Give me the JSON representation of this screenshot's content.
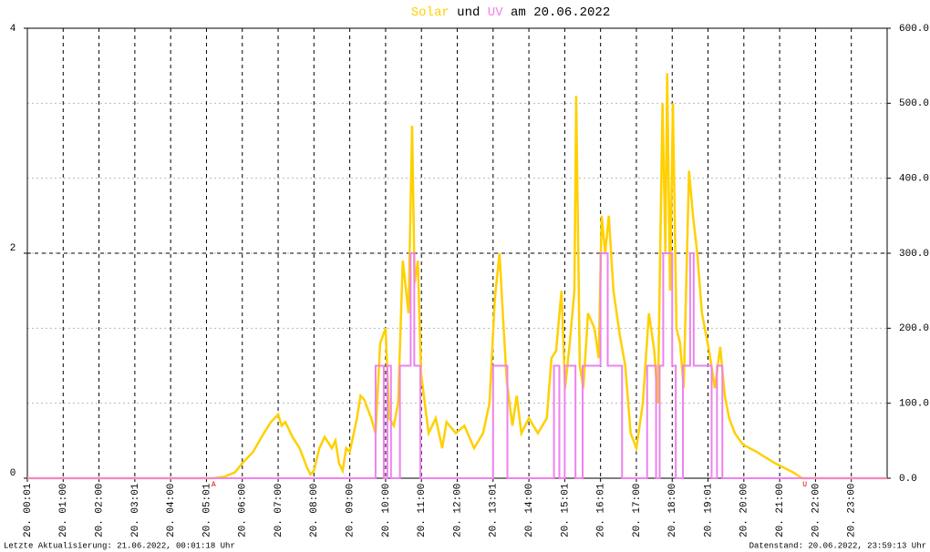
{
  "chart_data": {
    "type": "line",
    "title_join": "und",
    "title_suffix": "am 20.06.2022",
    "footer_left": "Letzte Aktualisierung: 21.06.2022, 00:01:18 Uhr",
    "footer_right": "Datenstand: 20.06.2022, 23:59:13 Uhr",
    "xlim": [
      0,
      24
    ],
    "xticks": [
      {
        "value": 0,
        "label": "20. 00:01"
      },
      {
        "value": 1,
        "label": "20. 01:00"
      },
      {
        "value": 2,
        "label": "20. 02:00"
      },
      {
        "value": 3,
        "label": "20. 03:01"
      },
      {
        "value": 4,
        "label": "20. 04:00"
      },
      {
        "value": 5,
        "label": "20. 05:01"
      },
      {
        "value": 6,
        "label": "20. 06:00"
      },
      {
        "value": 7,
        "label": "20. 07:00"
      },
      {
        "value": 8,
        "label": "20. 08:00"
      },
      {
        "value": 9,
        "label": "20. 09:00"
      },
      {
        "value": 10,
        "label": "20. 10:00"
      },
      {
        "value": 11,
        "label": "20. 11:00"
      },
      {
        "value": 12,
        "label": "20. 12:00"
      },
      {
        "value": 13,
        "label": "20. 13:01"
      },
      {
        "value": 14,
        "label": "20. 14:00"
      },
      {
        "value": 15,
        "label": "20. 15:01"
      },
      {
        "value": 16,
        "label": "20. 16:01"
      },
      {
        "value": 17,
        "label": "20. 17:00"
      },
      {
        "value": 18,
        "label": "20. 18:00"
      },
      {
        "value": 19,
        "label": "20. 19:01"
      },
      {
        "value": 20,
        "label": "20. 20:00"
      },
      {
        "value": 21,
        "label": "20. 21:00"
      },
      {
        "value": 22,
        "label": "20. 22:00"
      },
      {
        "value": 23,
        "label": "20. 23:00"
      }
    ],
    "ylim": [
      0,
      4
    ],
    "yticks": [
      0,
      2,
      4
    ],
    "y2lim": [
      0,
      600
    ],
    "y2ticks": [
      {
        "value": 0,
        "label": "0.0"
      },
      {
        "value": 100,
        "label": "100.0"
      },
      {
        "value": 200,
        "label": "200.0"
      },
      {
        "value": 300,
        "label": "300.0"
      },
      {
        "value": 400,
        "label": "400.0"
      },
      {
        "value": 500,
        "label": "500.0"
      },
      {
        "value": 600,
        "label": "600.0"
      }
    ],
    "grid": true,
    "annotations": [
      {
        "text": "A",
        "x": 5.2
      },
      {
        "text": "U",
        "x": 21.7
      }
    ],
    "series": [
      {
        "name": "Solar",
        "color": "#ffd000",
        "axis": "y2",
        "step": false,
        "x": [
          0,
          5.2,
          5.5,
          5.8,
          6.0,
          6.3,
          6.6,
          6.8,
          7.0,
          7.1,
          7.2,
          7.4,
          7.6,
          7.8,
          7.9,
          8.0,
          8.15,
          8.3,
          8.5,
          8.6,
          8.7,
          8.8,
          8.9,
          9.0,
          9.2,
          9.3,
          9.4,
          9.6,
          9.72,
          9.85,
          10.0,
          10.1,
          10.23,
          10.35,
          10.48,
          10.64,
          10.74,
          10.81,
          10.9,
          10.99,
          11.2,
          11.4,
          11.58,
          11.7,
          11.96,
          12.2,
          12.47,
          12.72,
          12.9,
          13.05,
          13.18,
          13.26,
          13.38,
          13.54,
          13.66,
          13.79,
          14.0,
          14.25,
          14.5,
          14.63,
          14.76,
          14.91,
          15.01,
          15.14,
          15.27,
          15.32,
          15.42,
          15.52,
          15.65,
          15.83,
          15.95,
          16.03,
          16.13,
          16.23,
          16.36,
          16.54,
          16.69,
          16.84,
          17.0,
          17.18,
          17.35,
          17.5,
          17.6,
          17.73,
          17.81,
          17.86,
          17.94,
          18.02,
          18.12,
          18.22,
          18.32,
          18.47,
          18.58,
          18.7,
          18.83,
          19.03,
          19.19,
          19.34,
          19.47,
          19.59,
          19.75,
          19.97,
          20.36,
          20.87,
          21.37,
          21.63,
          24
        ],
        "values": [
          0,
          0,
          2,
          8,
          20,
          35,
          60,
          75,
          85,
          70,
          75,
          55,
          40,
          15,
          5,
          10,
          40,
          55,
          40,
          50,
          20,
          10,
          40,
          35,
          80,
          110,
          105,
          80,
          60,
          180,
          200,
          80,
          70,
          100,
          290,
          220,
          470,
          260,
          290,
          140,
          60,
          80,
          40,
          75,
          60,
          70,
          40,
          60,
          100,
          240,
          300,
          230,
          130,
          70,
          110,
          60,
          80,
          60,
          80,
          160,
          170,
          250,
          120,
          180,
          250,
          510,
          150,
          120,
          220,
          200,
          160,
          350,
          300,
          350,
          250,
          190,
          150,
          60,
          40,
          100,
          220,
          170,
          100,
          500,
          300,
          540,
          250,
          500,
          200,
          180,
          120,
          410,
          350,
          300,
          220,
          170,
          120,
          175,
          110,
          80,
          60,
          45,
          35,
          20,
          8,
          0,
          0
        ]
      },
      {
        "name": "UV",
        "color": "#ee82ee",
        "axis": "y",
        "step": true,
        "x": [
          0,
          9.72,
          9.95,
          10.05,
          10.15,
          10.4,
          10.7,
          10.8,
          10.97,
          13.0,
          13.4,
          14.7,
          14.85,
          15.0,
          15.3,
          15.5,
          16.0,
          16.2,
          16.6,
          17.3,
          17.55,
          17.65,
          17.75,
          18.0,
          18.1,
          18.3,
          18.5,
          18.6,
          19.1,
          19.25,
          19.4,
          24
        ],
        "values": [
          0,
          1,
          0,
          1,
          0,
          1,
          2,
          1,
          0,
          1,
          0,
          1,
          0,
          1,
          0,
          1,
          2,
          1,
          0,
          1,
          0,
          1,
          2,
          1,
          0,
          1,
          2,
          1,
          0,
          1,
          0,
          0
        ]
      }
    ]
  }
}
